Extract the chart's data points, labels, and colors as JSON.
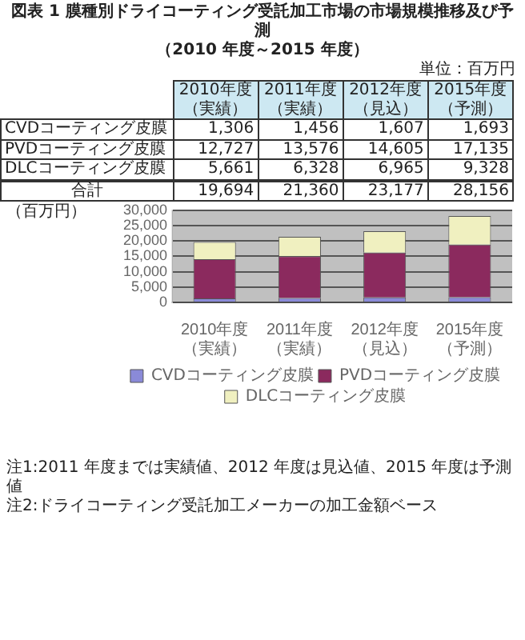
{
  "chart_data": {
    "type": "bar",
    "title": "図表 1 膜種別ドライコーティング受託加工市場の市場規模推移及び予測",
    "subtitle": "（2010 年度～2015 年度）",
    "ylabel": "（百万円）",
    "categories": [
      "2010年度（実績）",
      "2011年度（実績）",
      "2012年度（見込）",
      "2015年度（予測）"
    ],
    "series": [
      {
        "name": "CVDコーティング皮膜",
        "color": "#8a8ad8",
        "values": [
          1306,
          1456,
          1607,
          1693
        ],
        "value_labels": [
          "1,306",
          "1,456",
          "1,607",
          "1,693"
        ]
      },
      {
        "name": "PVDコーティング皮膜",
        "color": "#8b2a5e",
        "values": [
          12727,
          13576,
          14605,
          17135
        ],
        "value_labels": [
          "12,727",
          "13,576",
          "14,605",
          "17,135"
        ]
      },
      {
        "name": "DLCコーティング皮膜",
        "color": "#f0f0c0",
        "values": [
          5661,
          6328,
          6965,
          9328
        ],
        "value_labels": [
          "5,661",
          "6,328",
          "6,965",
          "9,328"
        ]
      }
    ],
    "stacked": true,
    "totals": [
      "19,694",
      "21,360",
      "23,177",
      "28,156"
    ],
    "ylim": [
      0,
      30000
    ],
    "yticks": [
      0,
      {
        "value": 5000,
        "label": "5,000"
      },
      {
        "value": 10000,
        "label": "10,000"
      },
      {
        "value": 15000,
        "label": "15,000"
      },
      {
        "value": 20000,
        "label": "20,000"
      },
      {
        "value": 25000,
        "label": "25,000"
      },
      {
        "value": 30000,
        "label": "30,000"
      }
    ],
    "grid": "y",
    "legend": "bottom",
    "annotations": [
      "単位：百万円",
      "合計",
      "注1:2011 年度までは実績値、2012 年度は見込値、2015 年度は予測値",
      "注2:ドライコーティング受託加工メーカーの加工金額ベース"
    ]
  }
}
